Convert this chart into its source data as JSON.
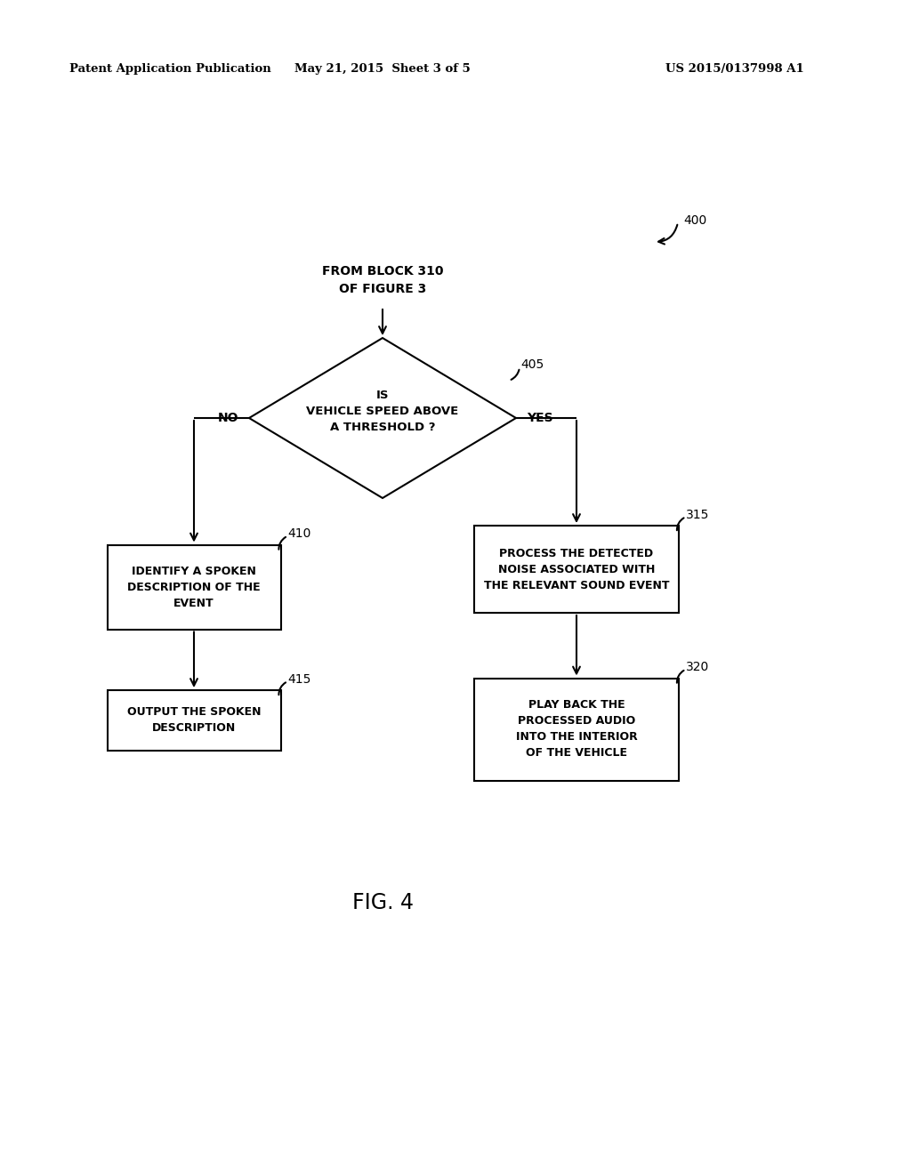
{
  "bg_color": "#ffffff",
  "header_left": "Patent Application Publication",
  "header_center": "May 21, 2015  Sheet 3 of 5",
  "header_right": "US 2015/0137998 A1",
  "fig_label": "FIG. 4",
  "fig_number": "400",
  "entry_text": "FROM BLOCK 310\nOF FIGURE 3",
  "diamond_label": "405",
  "diamond_text": "IS\nVEHICLE SPEED ABOVE\nA THRESHOLD ?",
  "no_label": "NO",
  "yes_label": "YES",
  "box_410_label": "410",
  "box_410_text": "IDENTIFY A SPOKEN\nDESCRIPTION OF THE\nEVENT",
  "box_415_label": "415",
  "box_415_text": "OUTPUT THE SPOKEN\nDESCRIPTION",
  "box_315_label": "315",
  "box_315_text": "PROCESS THE DETECTED\nNOISE ASSOCIATED WITH\nTHE RELEVANT SOUND EVENT",
  "box_320_label": "320",
  "box_320_text": "PLAY BACK THE\nPROCESSED AUDIO\nINTO THE INTERIOR\nOF THE VEHICLE"
}
